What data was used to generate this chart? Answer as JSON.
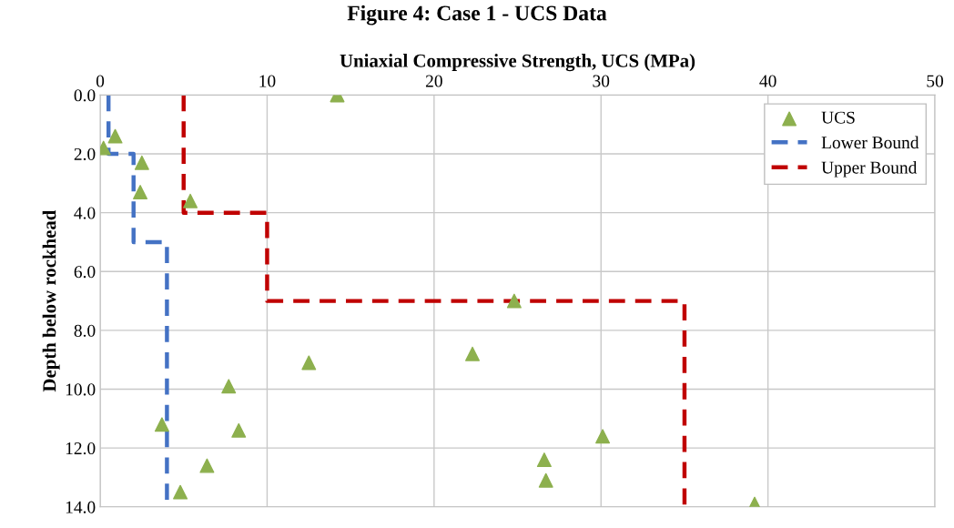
{
  "chart_data": {
    "type": "scatter",
    "title": "Figure 4: Case 1 - UCS Data",
    "xlabel": "Uniaxial Compressive Strength, UCS (MPa)",
    "ylabel": "Depth below rockhead",
    "series": [
      {
        "name": "UCS",
        "color": "#8db04e",
        "marker": "triangle",
        "x": [
          14.2,
          0.9,
          0.2,
          2.5,
          2.4,
          5.4,
          24.8,
          12.5,
          22.3,
          7.7,
          3.7,
          8.3,
          30.1,
          6.4,
          26.6,
          26.7,
          4.8,
          39.2
        ],
        "values": [
          0.0,
          1.4,
          1.8,
          2.3,
          3.3,
          3.6,
          7.0,
          9.1,
          8.8,
          9.9,
          11.2,
          11.4,
          11.6,
          12.6,
          12.4,
          13.1,
          13.5,
          13.9
        ]
      },
      {
        "name": "Lower Bound",
        "type": "line",
        "color": "#4472c4",
        "line_style": "dashed",
        "marker": "none",
        "x": [
          0.5,
          0.5,
          2,
          2,
          4,
          4
        ],
        "values": [
          0,
          2,
          2,
          5,
          5,
          14
        ]
      },
      {
        "name": "Upper Bound",
        "type": "line",
        "color": "#c00000",
        "line_style": "dashed",
        "marker": "none",
        "x": [
          5,
          5,
          10,
          10,
          35,
          35
        ],
        "values": [
          0,
          4,
          4,
          7,
          7,
          14
        ]
      }
    ],
    "xlim": [
      0,
      50
    ],
    "xticks": [
      0,
      10,
      20,
      30,
      40,
      50
    ],
    "ylim": [
      14,
      0
    ],
    "yticks": [
      {
        "value": 0,
        "label": "0.0"
      },
      {
        "value": 2,
        "label": "2.0"
      },
      {
        "value": 4,
        "label": "4.0"
      },
      {
        "value": 6,
        "label": "6.0"
      },
      {
        "value": 8,
        "label": "8.0"
      },
      {
        "value": 10,
        "label": "10.0"
      },
      {
        "value": 12,
        "label": "12.0"
      },
      {
        "value": 14,
        "label": "14.0"
      }
    ],
    "grid": true,
    "legend": "top right"
  }
}
